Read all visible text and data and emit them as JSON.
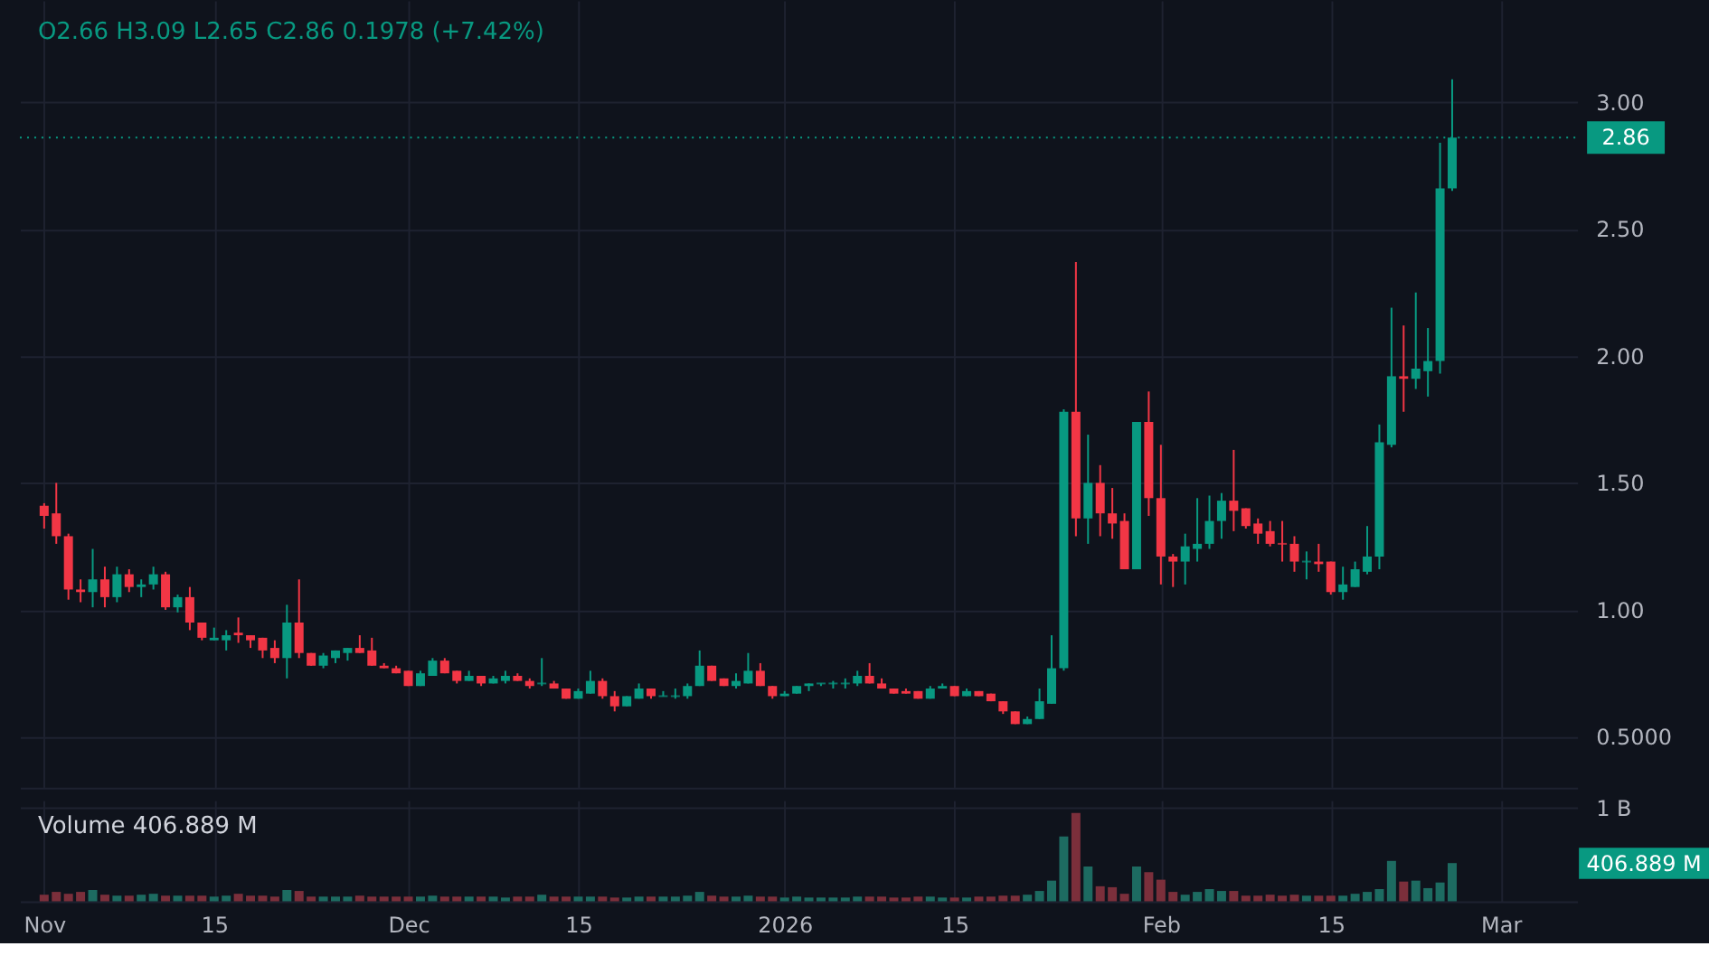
{
  "chart_data": [
    {
      "type": "candlestick",
      "title": "O2.66 H3.09 L2.65 C2.86 0.1978 (+7.42%)",
      "x": [
        "2025-11-01",
        "2025-11-02",
        "2025-11-03",
        "2025-11-04",
        "2025-11-05",
        "2025-11-06",
        "2025-11-07",
        "2025-11-08",
        "2025-11-09",
        "2025-11-10",
        "2025-11-11",
        "2025-11-12",
        "2025-11-13",
        "2025-11-14",
        "2025-11-15",
        "2025-11-16",
        "2025-11-17",
        "2025-11-18",
        "2025-11-19",
        "2025-11-20",
        "2025-11-21",
        "2025-11-22",
        "2025-11-23",
        "2025-11-24",
        "2025-11-25",
        "2025-11-26",
        "2025-11-27",
        "2025-11-28",
        "2025-11-29",
        "2025-11-30",
        "2025-12-01",
        "2025-12-02",
        "2025-12-03",
        "2025-12-04",
        "2025-12-05",
        "2025-12-06",
        "2025-12-07",
        "2025-12-08",
        "2025-12-09",
        "2025-12-10",
        "2025-12-11",
        "2025-12-12",
        "2025-12-13",
        "2025-12-14",
        "2025-12-15",
        "2025-12-16",
        "2025-12-17",
        "2025-12-18",
        "2025-12-19",
        "2025-12-20",
        "2025-12-21",
        "2025-12-22",
        "2025-12-23",
        "2025-12-24",
        "2025-12-25",
        "2025-12-26",
        "2025-12-27",
        "2025-12-28",
        "2025-12-29",
        "2025-12-30",
        "2025-12-31",
        "2026-01-01",
        "2026-01-02",
        "2026-01-03",
        "2026-01-04",
        "2026-01-05",
        "2026-01-06",
        "2026-01-07",
        "2026-01-08",
        "2026-01-09",
        "2026-01-10",
        "2026-01-11",
        "2026-01-12",
        "2026-01-13",
        "2026-01-14",
        "2026-01-15",
        "2026-01-16",
        "2026-01-17",
        "2026-01-18",
        "2026-01-19",
        "2026-01-20",
        "2026-01-21",
        "2026-01-22",
        "2026-01-23",
        "2026-01-24",
        "2026-01-25",
        "2026-01-26",
        "2026-01-27",
        "2026-01-28",
        "2026-01-29",
        "2026-01-30",
        "2026-01-31",
        "2026-02-01",
        "2026-02-02",
        "2026-02-03",
        "2026-02-04",
        "2026-02-05",
        "2026-02-06",
        "2026-02-07",
        "2026-02-08",
        "2026-02-09",
        "2026-02-10",
        "2026-02-11",
        "2026-02-12",
        "2026-02-13",
        "2026-02-14",
        "2026-02-15",
        "2026-02-16",
        "2026-02-17",
        "2026-02-18",
        "2026-02-19",
        "2026-02-20",
        "2026-02-21",
        "2026-02-22",
        "2026-02-23",
        "2026-02-24",
        "2026-02-25"
      ],
      "ohlc": [
        [
          1.41,
          1.42,
          1.32,
          1.37
        ],
        [
          1.38,
          1.5,
          1.26,
          1.29
        ],
        [
          1.29,
          1.3,
          1.04,
          1.08
        ],
        [
          1.08,
          1.12,
          1.03,
          1.07
        ],
        [
          1.07,
          1.24,
          1.01,
          1.12
        ],
        [
          1.12,
          1.17,
          1.01,
          1.05
        ],
        [
          1.05,
          1.17,
          1.03,
          1.14
        ],
        [
          1.14,
          1.16,
          1.07,
          1.09
        ],
        [
          1.09,
          1.12,
          1.05,
          1.1
        ],
        [
          1.1,
          1.17,
          1.08,
          1.14
        ],
        [
          1.14,
          1.15,
          1.0,
          1.01
        ],
        [
          1.01,
          1.06,
          0.99,
          1.05
        ],
        [
          1.05,
          1.09,
          0.92,
          0.95
        ],
        [
          0.95,
          0.95,
          0.88,
          0.89
        ],
        [
          0.88,
          0.93,
          0.88,
          0.89
        ],
        [
          0.88,
          0.92,
          0.84,
          0.9
        ],
        [
          0.91,
          0.97,
          0.87,
          0.9
        ],
        [
          0.9,
          0.9,
          0.85,
          0.88
        ],
        [
          0.89,
          0.89,
          0.81,
          0.84
        ],
        [
          0.85,
          0.88,
          0.79,
          0.81
        ],
        [
          0.81,
          1.02,
          0.73,
          0.95
        ],
        [
          0.95,
          1.12,
          0.81,
          0.83
        ],
        [
          0.83,
          0.83,
          0.78,
          0.78
        ],
        [
          0.78,
          0.83,
          0.77,
          0.82
        ],
        [
          0.81,
          0.84,
          0.79,
          0.84
        ],
        [
          0.83,
          0.85,
          0.8,
          0.85
        ],
        [
          0.85,
          0.9,
          0.83,
          0.83
        ],
        [
          0.84,
          0.89,
          0.78,
          0.78
        ],
        [
          0.78,
          0.79,
          0.77,
          0.77
        ],
        [
          0.77,
          0.78,
          0.75,
          0.75
        ],
        [
          0.76,
          0.76,
          0.7,
          0.7
        ],
        [
          0.7,
          0.76,
          0.7,
          0.75
        ],
        [
          0.74,
          0.81,
          0.74,
          0.8
        ],
        [
          0.8,
          0.81,
          0.75,
          0.75
        ],
        [
          0.76,
          0.76,
          0.71,
          0.72
        ],
        [
          0.72,
          0.76,
          0.72,
          0.74
        ],
        [
          0.74,
          0.74,
          0.7,
          0.71
        ],
        [
          0.71,
          0.74,
          0.71,
          0.73
        ],
        [
          0.72,
          0.76,
          0.71,
          0.74
        ],
        [
          0.74,
          0.75,
          0.72,
          0.72
        ],
        [
          0.72,
          0.73,
          0.69,
          0.7
        ],
        [
          0.71,
          0.81,
          0.7,
          0.71
        ],
        [
          0.71,
          0.72,
          0.69,
          0.69
        ],
        [
          0.69,
          0.69,
          0.65,
          0.65
        ],
        [
          0.65,
          0.69,
          0.65,
          0.68
        ],
        [
          0.67,
          0.76,
          0.67,
          0.72
        ],
        [
          0.72,
          0.73,
          0.65,
          0.66
        ],
        [
          0.66,
          0.68,
          0.6,
          0.62
        ],
        [
          0.62,
          0.66,
          0.62,
          0.66
        ],
        [
          0.65,
          0.71,
          0.65,
          0.69
        ],
        [
          0.69,
          0.69,
          0.65,
          0.66
        ],
        [
          0.66,
          0.68,
          0.66,
          0.66
        ],
        [
          0.66,
          0.69,
          0.65,
          0.66
        ],
        [
          0.66,
          0.71,
          0.65,
          0.7
        ],
        [
          0.7,
          0.84,
          0.7,
          0.78
        ],
        [
          0.78,
          0.78,
          0.72,
          0.72
        ],
        [
          0.73,
          0.73,
          0.7,
          0.7
        ],
        [
          0.7,
          0.75,
          0.69,
          0.72
        ],
        [
          0.71,
          0.83,
          0.71,
          0.76
        ],
        [
          0.76,
          0.79,
          0.7,
          0.7
        ],
        [
          0.7,
          0.7,
          0.65,
          0.66
        ],
        [
          0.66,
          0.68,
          0.66,
          0.67
        ],
        [
          0.67,
          0.7,
          0.67,
          0.7
        ],
        [
          0.7,
          0.71,
          0.68,
          0.71
        ],
        [
          0.71,
          0.71,
          0.7,
          0.71
        ],
        [
          0.71,
          0.72,
          0.69,
          0.71
        ],
        [
          0.71,
          0.73,
          0.69,
          0.71
        ],
        [
          0.71,
          0.76,
          0.7,
          0.74
        ],
        [
          0.74,
          0.79,
          0.71,
          0.71
        ],
        [
          0.71,
          0.73,
          0.69,
          0.69
        ],
        [
          0.69,
          0.69,
          0.67,
          0.67
        ],
        [
          0.68,
          0.69,
          0.67,
          0.67
        ],
        [
          0.68,
          0.68,
          0.65,
          0.65
        ],
        [
          0.65,
          0.7,
          0.65,
          0.69
        ],
        [
          0.69,
          0.71,
          0.69,
          0.7
        ],
        [
          0.7,
          0.7,
          0.66,
          0.66
        ],
        [
          0.66,
          0.69,
          0.66,
          0.68
        ],
        [
          0.68,
          0.68,
          0.66,
          0.66
        ],
        [
          0.67,
          0.67,
          0.64,
          0.64
        ],
        [
          0.64,
          0.64,
          0.59,
          0.6
        ],
        [
          0.6,
          0.6,
          0.55,
          0.55
        ],
        [
          0.55,
          0.58,
          0.55,
          0.57
        ],
        [
          0.57,
          0.69,
          0.57,
          0.64
        ],
        [
          0.63,
          0.9,
          0.63,
          0.77
        ],
        [
          0.77,
          1.79,
          0.76,
          1.78
        ],
        [
          1.78,
          2.37,
          1.29,
          1.36
        ],
        [
          1.36,
          1.69,
          1.26,
          1.5
        ],
        [
          1.5,
          1.57,
          1.29,
          1.38
        ],
        [
          1.38,
          1.48,
          1.28,
          1.34
        ],
        [
          1.35,
          1.38,
          1.16,
          1.16
        ],
        [
          1.16,
          1.74,
          1.16,
          1.74
        ],
        [
          1.74,
          1.86,
          1.37,
          1.44
        ],
        [
          1.44,
          1.65,
          1.1,
          1.21
        ],
        [
          1.21,
          1.22,
          1.09,
          1.19
        ],
        [
          1.19,
          1.3,
          1.1,
          1.25
        ],
        [
          1.24,
          1.44,
          1.19,
          1.26
        ],
        [
          1.26,
          1.45,
          1.24,
          1.35
        ],
        [
          1.35,
          1.46,
          1.28,
          1.43
        ],
        [
          1.43,
          1.63,
          1.31,
          1.39
        ],
        [
          1.4,
          1.4,
          1.32,
          1.33
        ],
        [
          1.34,
          1.36,
          1.26,
          1.3
        ],
        [
          1.31,
          1.35,
          1.25,
          1.26
        ],
        [
          1.26,
          1.35,
          1.19,
          1.26
        ],
        [
          1.26,
          1.29,
          1.15,
          1.19
        ],
        [
          1.19,
          1.23,
          1.12,
          1.19
        ],
        [
          1.19,
          1.26,
          1.15,
          1.18
        ],
        [
          1.19,
          1.19,
          1.06,
          1.07
        ],
        [
          1.07,
          1.17,
          1.04,
          1.1
        ],
        [
          1.09,
          1.19,
          1.09,
          1.16
        ],
        [
          1.15,
          1.33,
          1.14,
          1.21
        ],
        [
          1.21,
          1.73,
          1.16,
          1.66
        ],
        [
          1.65,
          2.19,
          1.64,
          1.92
        ],
        [
          1.92,
          2.12,
          1.78,
          1.91
        ],
        [
          1.91,
          2.25,
          1.87,
          1.95
        ],
        [
          1.94,
          2.11,
          1.84,
          1.98
        ],
        [
          1.98,
          2.84,
          1.93,
          2.66
        ],
        [
          2.66,
          3.09,
          2.65,
          2.86
        ]
      ],
      "colors": [
        "#f23645",
        "#f23645",
        "#f23645",
        "#f23645",
        "#089981",
        "#f23645",
        "#089981",
        "#f23645",
        "#089981",
        "#089981",
        "#f23645",
        "#089981",
        "#f23645",
        "#f23645",
        "#089981",
        "#089981",
        "#f23645",
        "#f23645",
        "#f23645",
        "#f23645",
        "#089981",
        "#f23645",
        "#f23645",
        "#089981",
        "#089981",
        "#089981",
        "#f23645",
        "#f23645",
        "#f23645",
        "#f23645",
        "#f23645",
        "#089981",
        "#089981",
        "#f23645",
        "#f23645",
        "#089981",
        "#f23645",
        "#089981",
        "#089981",
        "#f23645",
        "#f23645",
        "#089981",
        "#f23645",
        "#f23645",
        "#089981",
        "#089981",
        "#f23645",
        "#f23645",
        "#089981",
        "#089981",
        "#f23645",
        "#089981",
        "#089981",
        "#089981",
        "#089981",
        "#f23645",
        "#f23645",
        "#089981",
        "#089981",
        "#f23645",
        "#f23645",
        "#089981",
        "#089981",
        "#089981",
        "#089981",
        "#089981",
        "#089981",
        "#089981",
        "#f23645",
        "#f23645",
        "#f23645",
        "#f23645",
        "#f23645",
        "#089981",
        "#089981",
        "#f23645",
        "#089981",
        "#f23645",
        "#f23645",
        "#f23645",
        "#f23645",
        "#089981",
        "#089981",
        "#089981",
        "#089981",
        "#f23645",
        "#089981",
        "#f23645",
        "#f23645",
        "#f23645",
        "#089981",
        "#f23645",
        "#f23645",
        "#f23645",
        "#089981",
        "#089981",
        "#089981",
        "#089981",
        "#f23645",
        "#f23645",
        "#f23645",
        "#f23645",
        "#f23645",
        "#f23645",
        "#089981",
        "#f23645",
        "#f23645",
        "#089981",
        "#089981",
        "#089981",
        "#089981",
        "#089981",
        "#f23645",
        "#089981",
        "#089981",
        "#089981",
        "#089981"
      ],
      "xlim": [
        "2025-10-30",
        "2026-03-07T07:00"
      ],
      "xticks": [
        {
          "value": "2025-11-01",
          "label": null
        },
        {
          "value": "2025-11-15",
          "label": null
        },
        {
          "value": "2025-12-01",
          "label": null
        },
        {
          "value": "2025-12-15",
          "label": null
        },
        {
          "value": "2026-01-01",
          "label": null
        },
        {
          "value": "2026-01-15",
          "label": null
        },
        {
          "value": "2026-02-01",
          "label": null
        },
        {
          "value": "2026-02-15",
          "label": null
        },
        {
          "value": "2026-03-01",
          "label": null
        }
      ],
      "ylim": [
        0.3,
        3.4
      ],
      "yticks": [
        {
          "value": 0.5,
          "label": "0.5000"
        },
        {
          "value": 1,
          "label": "1.00"
        },
        {
          "value": 1.5,
          "label": "1.50"
        },
        {
          "value": 2,
          "label": "2.00"
        },
        {
          "value": 2.5,
          "label": "2.50"
        },
        {
          "value": 3,
          "label": "3.00"
        }
      ],
      "ref_lines": [
        {
          "axis": "y",
          "value": 2.86,
          "label": "2.86",
          "color": "#089981",
          "line_style": "dotted"
        }
      ],
      "grid": true,
      "tick_labels": "y"
    },
    {
      "type": "bar",
      "x": [
        "2025-11-01",
        "2025-11-02",
        "2025-11-03",
        "2025-11-04",
        "2025-11-05",
        "2025-11-06",
        "2025-11-07",
        "2025-11-08",
        "2025-11-09",
        "2025-11-10",
        "2025-11-11",
        "2025-11-12",
        "2025-11-13",
        "2025-11-14",
        "2025-11-15",
        "2025-11-16",
        "2025-11-17",
        "2025-11-18",
        "2025-11-19",
        "2025-11-20",
        "2025-11-21",
        "2025-11-22",
        "2025-11-23",
        "2025-11-24",
        "2025-11-25",
        "2025-11-26",
        "2025-11-27",
        "2025-11-28",
        "2025-11-29",
        "2025-11-30",
        "2025-12-01",
        "2025-12-02",
        "2025-12-03",
        "2025-12-04",
        "2025-12-05",
        "2025-12-06",
        "2025-12-07",
        "2025-12-08",
        "2025-12-09",
        "2025-12-10",
        "2025-12-11",
        "2025-12-12",
        "2025-12-13",
        "2025-12-14",
        "2025-12-15",
        "2025-12-16",
        "2025-12-17",
        "2025-12-18",
        "2025-12-19",
        "2025-12-20",
        "2025-12-21",
        "2025-12-22",
        "2025-12-23",
        "2025-12-24",
        "2025-12-25",
        "2025-12-26",
        "2025-12-27",
        "2025-12-28",
        "2025-12-29",
        "2025-12-30",
        "2025-12-31",
        "2026-01-01",
        "2026-01-02",
        "2026-01-03",
        "2026-01-04",
        "2026-01-05",
        "2026-01-06",
        "2026-01-07",
        "2026-01-08",
        "2026-01-09",
        "2026-01-10",
        "2026-01-11",
        "2026-01-12",
        "2026-01-13",
        "2026-01-14",
        "2026-01-15",
        "2026-01-16",
        "2026-01-17",
        "2026-01-18",
        "2026-01-19",
        "2026-01-20",
        "2026-01-21",
        "2026-01-22",
        "2026-01-23",
        "2026-01-24",
        "2026-01-25",
        "2026-01-26",
        "2026-01-27",
        "2026-01-28",
        "2026-01-29",
        "2026-01-30",
        "2026-01-31",
        "2026-02-01",
        "2026-02-02",
        "2026-02-03",
        "2026-02-04",
        "2026-02-05",
        "2026-02-06",
        "2026-02-07",
        "2026-02-08",
        "2026-02-09",
        "2026-02-10",
        "2026-02-11",
        "2026-02-12",
        "2026-02-13",
        "2026-02-14",
        "2026-02-15",
        "2026-02-16",
        "2026-02-17",
        "2026-02-18",
        "2026-02-19",
        "2026-02-20",
        "2026-02-21",
        "2026-02-22",
        "2026-02-23",
        "2026-02-24",
        "2026-02-25"
      ],
      "values": [
        0.07,
        0.1,
        0.08,
        0.1,
        0.12,
        0.07,
        0.06,
        0.06,
        0.07,
        0.08,
        0.06,
        0.06,
        0.06,
        0.06,
        0.05,
        0.06,
        0.08,
        0.06,
        0.06,
        0.05,
        0.12,
        0.11,
        0.05,
        0.05,
        0.05,
        0.05,
        0.06,
        0.05,
        0.05,
        0.05,
        0.05,
        0.05,
        0.06,
        0.05,
        0.05,
        0.05,
        0.05,
        0.05,
        0.04,
        0.05,
        0.05,
        0.07,
        0.05,
        0.05,
        0.05,
        0.05,
        0.05,
        0.04,
        0.04,
        0.05,
        0.05,
        0.05,
        0.05,
        0.06,
        0.1,
        0.06,
        0.05,
        0.05,
        0.06,
        0.05,
        0.05,
        0.04,
        0.05,
        0.04,
        0.04,
        0.04,
        0.04,
        0.05,
        0.05,
        0.05,
        0.04,
        0.04,
        0.05,
        0.05,
        0.04,
        0.04,
        0.04,
        0.05,
        0.05,
        0.06,
        0.06,
        0.07,
        0.11,
        0.22,
        0.69,
        0.94,
        0.37,
        0.16,
        0.15,
        0.08,
        0.37,
        0.31,
        0.23,
        0.1,
        0.07,
        0.1,
        0.13,
        0.11,
        0.11,
        0.06,
        0.06,
        0.07,
        0.06,
        0.07,
        0.06,
        0.06,
        0.06,
        0.06,
        0.08,
        0.1,
        0.13,
        0.43,
        0.21,
        0.22,
        0.14,
        0.2,
        0.406889
      ],
      "colors": [
        "#7b2f3b",
        "#7b2f3b",
        "#7b2f3b",
        "#7b2f3b",
        "#1d6b61",
        "#7b2f3b",
        "#1d6b61",
        "#7b2f3b",
        "#1d6b61",
        "#1d6b61",
        "#7b2f3b",
        "#1d6b61",
        "#7b2f3b",
        "#7b2f3b",
        "#1d6b61",
        "#1d6b61",
        "#7b2f3b",
        "#7b2f3b",
        "#7b2f3b",
        "#7b2f3b",
        "#1d6b61",
        "#7b2f3b",
        "#7b2f3b",
        "#1d6b61",
        "#1d6b61",
        "#1d6b61",
        "#7b2f3b",
        "#7b2f3b",
        "#7b2f3b",
        "#7b2f3b",
        "#7b2f3b",
        "#1d6b61",
        "#1d6b61",
        "#7b2f3b",
        "#7b2f3b",
        "#1d6b61",
        "#7b2f3b",
        "#1d6b61",
        "#1d6b61",
        "#7b2f3b",
        "#7b2f3b",
        "#1d6b61",
        "#7b2f3b",
        "#7b2f3b",
        "#1d6b61",
        "#1d6b61",
        "#7b2f3b",
        "#7b2f3b",
        "#1d6b61",
        "#1d6b61",
        "#7b2f3b",
        "#1d6b61",
        "#1d6b61",
        "#1d6b61",
        "#1d6b61",
        "#7b2f3b",
        "#7b2f3b",
        "#1d6b61",
        "#1d6b61",
        "#7b2f3b",
        "#7b2f3b",
        "#1d6b61",
        "#1d6b61",
        "#1d6b61",
        "#1d6b61",
        "#1d6b61",
        "#1d6b61",
        "#1d6b61",
        "#7b2f3b",
        "#7b2f3b",
        "#7b2f3b",
        "#7b2f3b",
        "#7b2f3b",
        "#1d6b61",
        "#1d6b61",
        "#7b2f3b",
        "#1d6b61",
        "#7b2f3b",
        "#7b2f3b",
        "#7b2f3b",
        "#7b2f3b",
        "#1d6b61",
        "#1d6b61",
        "#1d6b61",
        "#1d6b61",
        "#7b2f3b",
        "#1d6b61",
        "#7b2f3b",
        "#7b2f3b",
        "#7b2f3b",
        "#1d6b61",
        "#7b2f3b",
        "#7b2f3b",
        "#7b2f3b",
        "#1d6b61",
        "#1d6b61",
        "#1d6b61",
        "#1d6b61",
        "#7b2f3b",
        "#7b2f3b",
        "#7b2f3b",
        "#7b2f3b",
        "#7b2f3b",
        "#7b2f3b",
        "#1d6b61",
        "#7b2f3b",
        "#7b2f3b",
        "#1d6b61",
        "#1d6b61",
        "#1d6b61",
        "#1d6b61",
        "#1d6b61",
        "#7b2f3b",
        "#1d6b61",
        "#1d6b61",
        "#1d6b61",
        "#1d6b61"
      ],
      "xlim": [
        "2025-10-30",
        "2026-03-07T07:00"
      ],
      "xticks": [
        {
          "value": "2025-11-01",
          "label": "Nov"
        },
        {
          "value": "2025-11-15",
          "label": "15"
        },
        {
          "value": "2025-12-01",
          "label": "Dec"
        },
        {
          "value": "2025-12-15",
          "label": "15"
        },
        {
          "value": "2026-01-01",
          "label": "2026"
        },
        {
          "value": "2026-01-15",
          "label": "15"
        },
        {
          "value": "2026-02-01",
          "label": "Feb"
        },
        {
          "value": "2026-02-15",
          "label": "15"
        },
        {
          "value": "2026-03-01",
          "label": "Mar"
        }
      ],
      "ylim": [
        0,
        1.076
      ],
      "yticks": [
        {
          "value": 1,
          "label": "1 B"
        }
      ],
      "annotations": [
        "Volume 406.889 M",
        "406.889 M"
      ],
      "grid": true
    }
  ]
}
